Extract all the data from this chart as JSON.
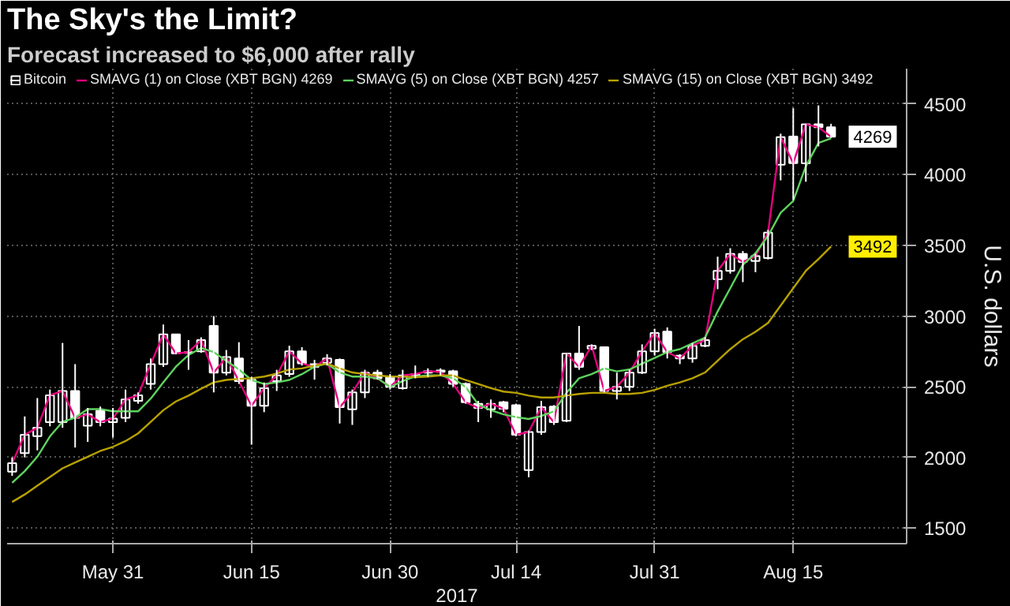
{
  "chart_data": {
    "type": "candlestick",
    "title": "The Sky's the Limit?",
    "subtitle": "Forecast increased to $6,000 after rally",
    "xlabel": "2017",
    "ylabel": "U.S. dollars",
    "categories": [
      null,
      null,
      null,
      null,
      null,
      null,
      null,
      null,
      "May 31",
      null,
      null,
      null,
      null,
      null,
      null,
      null,
      null,
      null,
      null,
      "Jun 15",
      null,
      null,
      null,
      null,
      null,
      null,
      null,
      null,
      null,
      null,
      "Jun 30",
      null,
      null,
      null,
      null,
      null,
      null,
      null,
      null,
      null,
      "Jul 14",
      null,
      null,
      null,
      null,
      null,
      null,
      null,
      null,
      null,
      null,
      "Jul 31",
      null,
      null,
      null,
      null,
      null,
      null,
      null,
      null,
      null,
      null,
      "Aug 15",
      null,
      null,
      null
    ],
    "series": [
      {
        "name": "Bitcoin",
        "color": "#ffffff",
        "ohlc": [
          [
            1900,
            2000,
            1870,
            1960
          ],
          [
            2030,
            2290,
            2000,
            2160
          ],
          [
            2150,
            2420,
            2050,
            2210
          ],
          [
            2250,
            2480,
            2220,
            2440
          ],
          [
            2250,
            2810,
            2210,
            2470
          ],
          [
            2470,
            2660,
            2070,
            2280
          ],
          [
            2225,
            2350,
            2110,
            2305
          ],
          [
            2330,
            2360,
            2220,
            2250
          ],
          [
            2250,
            2350,
            2140,
            2275
          ],
          [
            2280,
            2480,
            2250,
            2410
          ],
          [
            2400,
            2460,
            2380,
            2440
          ],
          [
            2520,
            2700,
            2480,
            2660
          ],
          [
            2660,
            2940,
            2640,
            2870
          ],
          [
            2870,
            2870,
            2730,
            2735
          ],
          [
            2740,
            2830,
            2620,
            2745
          ],
          [
            2750,
            2850,
            2740,
            2830
          ],
          [
            2930,
            3000,
            2460,
            2600
          ],
          [
            2600,
            2760,
            2580,
            2710
          ],
          [
            2700,
            2815,
            2520,
            2540
          ],
          [
            2550,
            2570,
            2090,
            2365
          ],
          [
            2365,
            2530,
            2320,
            2490
          ],
          [
            2540,
            2620,
            2470,
            2580
          ],
          [
            2590,
            2790,
            2570,
            2750
          ],
          [
            2750,
            2780,
            2650,
            2665
          ],
          [
            2660,
            2690,
            2550,
            2640
          ],
          [
            2670,
            2730,
            2650,
            2700
          ],
          [
            2690,
            2700,
            2240,
            2355
          ],
          [
            2340,
            2480,
            2230,
            2460
          ],
          [
            2460,
            2620,
            2420,
            2600
          ],
          [
            2600,
            2620,
            2550,
            2560
          ],
          [
            2570,
            2590,
            2480,
            2500
          ],
          [
            2490,
            2620,
            2480,
            2580
          ],
          [
            2580,
            2650,
            2560,
            2590
          ],
          [
            2600,
            2630,
            2570,
            2610
          ],
          [
            2615,
            2630,
            2580,
            2605
          ],
          [
            2610,
            2620,
            2500,
            2520
          ],
          [
            2520,
            2530,
            2380,
            2390
          ],
          [
            2380,
            2400,
            2250,
            2350
          ],
          [
            2340,
            2410,
            2280,
            2380
          ],
          [
            2390,
            2400,
            2320,
            2345
          ],
          [
            2370,
            2380,
            2150,
            2160
          ],
          [
            1910,
            2190,
            1860,
            2180
          ],
          [
            2180,
            2400,
            2160,
            2355
          ],
          [
            2360,
            2370,
            2230,
            2250
          ],
          [
            2260,
            2740,
            2250,
            2735
          ],
          [
            2735,
            2930,
            2620,
            2640
          ],
          [
            2770,
            2800,
            2760,
            2790
          ],
          [
            2780,
            2780,
            2460,
            2470
          ],
          [
            2470,
            2600,
            2410,
            2500
          ],
          [
            2500,
            2620,
            2470,
            2600
          ],
          [
            2600,
            2800,
            2590,
            2750
          ],
          [
            2750,
            2910,
            2720,
            2880
          ],
          [
            2890,
            2920,
            2700,
            2745
          ],
          [
            2720,
            2730,
            2660,
            2700
          ],
          [
            2700,
            2810,
            2670,
            2790
          ],
          [
            2790,
            2850,
            2780,
            2830
          ],
          [
            3260,
            3420,
            3190,
            3320
          ],
          [
            3320,
            3480,
            3300,
            3440
          ],
          [
            3440,
            3460,
            3240,
            3383
          ],
          [
            3390,
            3440,
            3310,
            3424
          ],
          [
            3410,
            3610,
            3400,
            3590
          ],
          [
            4070,
            4290,
            3960,
            4266
          ],
          [
            4270,
            4470,
            3820,
            4081
          ],
          [
            4080,
            4360,
            3950,
            4356
          ],
          [
            4356,
            4490,
            4200,
            4336
          ],
          [
            4336,
            4360,
            4260,
            4269
          ]
        ]
      },
      {
        "name": "SMAVG (1) on Close (XBT BGN) 4269",
        "type": "line",
        "color": "#e6007e",
        "values": [
          1960,
          2160,
          2210,
          2440,
          2470,
          2280,
          2305,
          2250,
          2275,
          2410,
          2440,
          2660,
          2870,
          2735,
          2745,
          2830,
          2600,
          2710,
          2540,
          2365,
          2490,
          2580,
          2750,
          2665,
          2640,
          2700,
          2355,
          2460,
          2600,
          2560,
          2500,
          2580,
          2590,
          2610,
          2605,
          2520,
          2390,
          2350,
          2380,
          2345,
          2160,
          2180,
          2355,
          2250,
          2735,
          2640,
          2790,
          2470,
          2500,
          2600,
          2750,
          2880,
          2745,
          2700,
          2790,
          2830,
          3320,
          3440,
          3383,
          3424,
          3590,
          4266,
          4081,
          4356,
          4336,
          4269
        ]
      },
      {
        "name": "SMAVG (5) on Close (XBT BGN) 4257",
        "type": "line",
        "color": "#5fd35f",
        "values": [
          1820,
          1903,
          2005,
          2149,
          2252,
          2281,
          2342,
          2342,
          2326,
          2326,
          2326,
          2416,
          2531,
          2642,
          2724,
          2774,
          2745,
          2684,
          2622,
          2548,
          2519,
          2531,
          2548,
          2589,
          2642,
          2663,
          2601,
          2572,
          2572,
          2560,
          2498,
          2540,
          2572,
          2580,
          2580,
          2560,
          2498,
          2375,
          2334,
          2305,
          2285,
          2272,
          2293,
          2326,
          2457,
          2560,
          2589,
          2630,
          2609,
          2622,
          2663,
          2704,
          2745,
          2766,
          2807,
          2848,
          3033,
          3197,
          3362,
          3444,
          3567,
          3731,
          3814,
          4060,
          4225,
          4257
        ]
      },
      {
        "name": "SMAVG (15) on Close (XBT BGN) 3492",
        "type": "line",
        "color": "#b8a200",
        "values": [
          1685,
          1738,
          1800,
          1862,
          1923,
          1964,
          2005,
          2046,
          2075,
          2116,
          2170,
          2252,
          2334,
          2396,
          2437,
          2486,
          2531,
          2548,
          2556,
          2560,
          2572,
          2593,
          2622,
          2630,
          2650,
          2663,
          2630,
          2601,
          2589,
          2580,
          2572,
          2572,
          2568,
          2572,
          2580,
          2580,
          2548,
          2519,
          2490,
          2466,
          2457,
          2437,
          2424,
          2424,
          2437,
          2449,
          2457,
          2457,
          2449,
          2449,
          2457,
          2478,
          2507,
          2531,
          2560,
          2601,
          2684,
          2766,
          2836,
          2889,
          2951,
          3074,
          3197,
          3320,
          3403,
          3492
        ]
      }
    ],
    "annotations": [
      "4269",
      "3492"
    ],
    "ylim": [
      1390,
      4750
    ],
    "yticks": [
      1500,
      2000,
      2500,
      3000,
      3500,
      4000,
      4500
    ],
    "grid": true,
    "legend": "top left"
  }
}
